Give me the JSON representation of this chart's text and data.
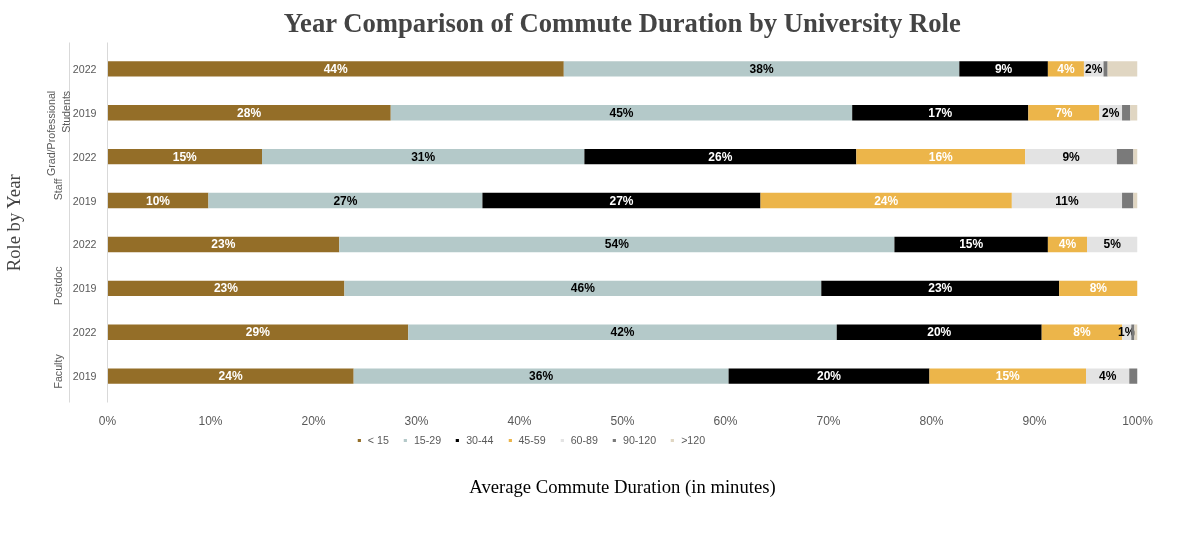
{
  "chart_data": {
    "type": "bar",
    "orientation": "horizontal",
    "stacked": true,
    "title": "Year Comparison of Commute Duration by University Role",
    "xlabel": "Average Commute Duration (in minutes)",
    "ylabel": "Role by Year",
    "categories": [
      "2022",
      "2019",
      "2022",
      "2019",
      "2022",
      "2019",
      "2022",
      "2019"
    ],
    "annotations": [
      "Grad/Professional Students",
      "Staff",
      "Postdoc",
      "Faculty"
    ],
    "xlim": [
      0,
      100
    ],
    "xticks": [
      {
        "value": 0,
        "label": "0%"
      },
      {
        "value": 10,
        "label": "10%"
      },
      {
        "value": 20,
        "label": "20%"
      },
      {
        "value": 30,
        "label": "30%"
      },
      {
        "value": 40,
        "label": "40%"
      },
      {
        "value": 50,
        "label": "50%"
      },
      {
        "value": 60,
        "label": "60%"
      },
      {
        "value": 70,
        "label": "70%"
      },
      {
        "value": 80,
        "label": "80%"
      },
      {
        "value": 90,
        "label": "90%"
      },
      {
        "value": 100,
        "label": "100%"
      }
    ],
    "grid": false,
    "legend": "bottom",
    "series": [
      {
        "name": "< 15",
        "color": "#946e28",
        "values": [
          44.3,
          27.5,
          15.0,
          9.8,
          22.5,
          23.0,
          29.2,
          23.9
        ],
        "value_labels": [
          "44%",
          "28%",
          "15%",
          "10%",
          "23%",
          "23%",
          "29%",
          "24%"
        ]
      },
      {
        "name": "15-29",
        "color": "#b4c9c9",
        "values": [
          38.4,
          44.8,
          31.3,
          26.6,
          53.9,
          46.3,
          41.6,
          36.4
        ],
        "value_labels": [
          "38%",
          "45%",
          "31%",
          "27%",
          "54%",
          "46%",
          "42%",
          "36%"
        ]
      },
      {
        "name": "30-44",
        "color": "#000000",
        "values": [
          8.6,
          17.1,
          26.4,
          27.0,
          14.9,
          23.1,
          19.9,
          19.5
        ],
        "value_labels": [
          "9%",
          "17%",
          "26%",
          "27%",
          "15%",
          "23%",
          "20%",
          "20%"
        ]
      },
      {
        "name": "45-59",
        "color": "#ecb54a",
        "values": [
          3.5,
          6.9,
          16.4,
          24.4,
          3.8,
          7.6,
          7.8,
          15.2
        ],
        "value_labels": [
          "4%",
          "7%",
          "16%",
          "24%",
          "4%",
          "8%",
          "8%",
          "15%"
        ]
      },
      {
        "name": "60-89",
        "color": "#e3e3e3",
        "values": [
          1.9,
          2.2,
          8.9,
          10.7,
          4.9,
          null,
          0.9,
          4.2
        ],
        "value_labels": [
          "2%",
          "2%",
          "9%",
          "11%",
          "5%",
          null,
          "1%",
          "4%"
        ]
      },
      {
        "name": "90-120",
        "color": "#7a7a7a",
        "values": [
          0.4,
          0.8,
          1.6,
          1.1,
          null,
          null,
          0.3,
          0.8
        ],
        "value_labels": [
          null,
          null,
          null,
          null,
          null,
          null,
          null,
          null
        ]
      },
      {
        "name": ">120",
        "color": "#e0d6c2",
        "values": [
          2.9,
          0.7,
          0.4,
          0.4,
          null,
          null,
          0.3,
          null
        ],
        "value_labels": [
          null,
          null,
          null,
          null,
          null,
          null,
          null,
          null
        ]
      }
    ]
  }
}
